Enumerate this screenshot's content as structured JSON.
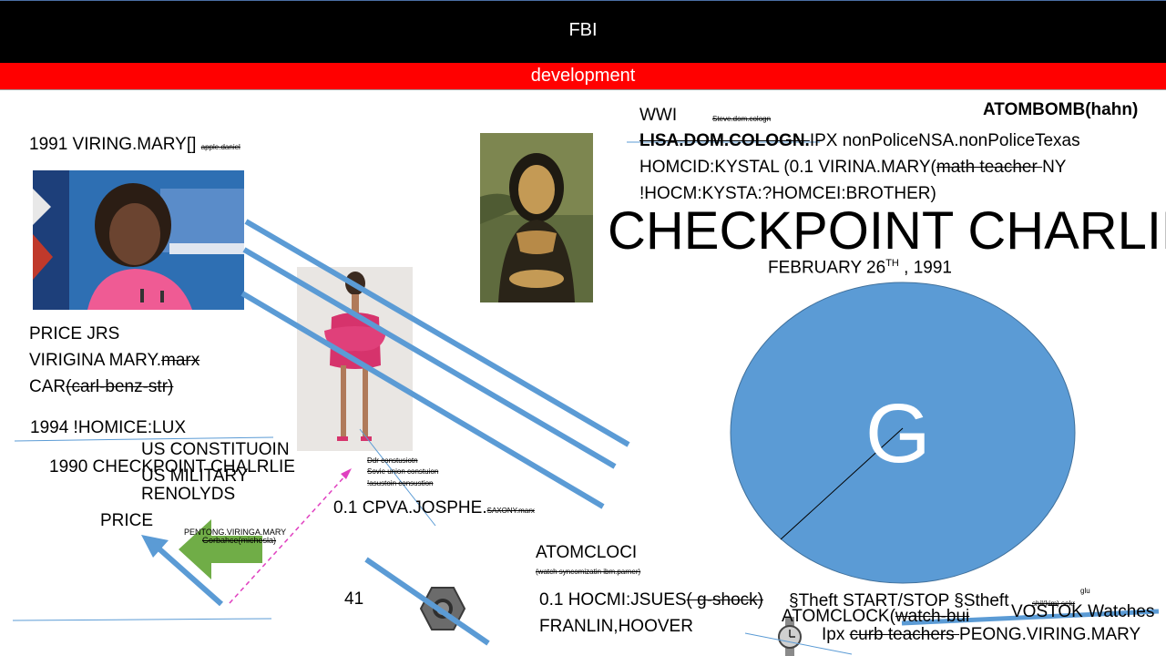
{
  "header": {
    "title": "FBI",
    "subtitle": "development"
  },
  "left": {
    "line1": "1991 VIRING.MARY[]",
    "line1_small": "apple.daniel",
    "price_jrs": "PRICE JRS",
    "virigina_prefix": "VIRIGINA MARY.",
    "virigina_strike": "marx",
    "car_prefix": "CAR",
    "car_strike": "(carl-benz-str)",
    "homice": "1994 !HOMICE:LUX",
    "constitution": "US CONSTITUOIN",
    "checkpoint1990": "1990 CHECKPOINT CHALRLIE",
    "military": "US MILITARY",
    "renolyds": "RENOLYDS",
    "price": "PRICE",
    "pentong": "PENTONG.VIRINGA.MARY",
    "gorbahce": "Gorbahce(michesla)"
  },
  "middle": {
    "ddr": "Ddr constusiotn",
    "sovie": "Sovie union constuion",
    "lasustoin": "!asustoin consustion",
    "cpva": "0.1 CPVA.JOSPHE.",
    "cpva_small": "SAXONY.marx",
    "num41": "41"
  },
  "right": {
    "wwi": "WWI",
    "steve": "Steve.dom.cologn",
    "atombomb": "ATOMBOMB(hahn)",
    "lisa_strike": "LISA.DOM.COLOGN.",
    "lisa_rest": "IPX  nonPoliceNSA.nonPoliceTexas",
    "homcid_prefix": "HOMCID:KYSTAL (0.1 VIRINA.MARY(",
    "homcid_strike": "math teacher ",
    "homcid_suffix": "NY",
    "hocm": "!HOCM:KYSTA:?HOMCEI:BROTHER)",
    "checkpoint": "CHECKPOINT CHARLIE",
    "date_prefix": "FEBRUARY 26",
    "date_sup": "TH",
    "date_suffix": " , 1991",
    "circle_letter": "G"
  },
  "bottom": {
    "atomcloci": "ATOMCLOCI",
    "watch_small": "(watch syncomizatin ibm.parner)",
    "hocmi_prefix": "0.1 HOCMI:JSUES",
    "hocmi_strike": "( g-shock)",
    "franlin": "FRANLIN,HOOVER",
    "theft": "§Theft START/STOP §Stheft",
    "glu": "glu",
    "shil": "shil(kim) sekr",
    "atomclock_prefix": "ATOMCLOCK(",
    "atomclock_strike": "watch-bui",
    "vostok": "VOSTOK Watches",
    "ipx_prefix": "Ipx ",
    "ipx_strike": "curb teachers ",
    "ipx_suffix": "PEONG.VIRING.MARY"
  },
  "colors": {
    "header_bg": "#000000",
    "subheader_bg": "#ff0000",
    "line_blue": "#5b9bd5",
    "arrow_green": "#70ad47",
    "arrow_pink": "#e040c0"
  }
}
